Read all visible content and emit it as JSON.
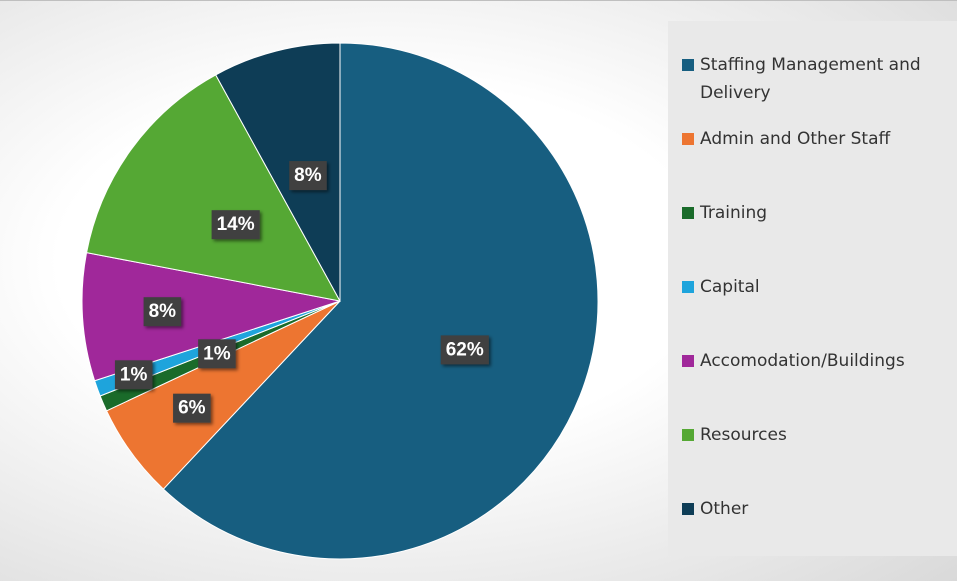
{
  "chart_data": {
    "type": "pie",
    "categories": [
      "Staffing Management and Delivery",
      "Admin and Other Staff",
      "Training",
      "Capital",
      "Accomodation/Buildings",
      "Resources",
      "Other"
    ],
    "values": [
      62,
      6,
      1,
      1,
      8,
      14,
      8
    ],
    "value_labels": [
      "62%",
      "6%",
      "1%",
      "1%",
      "8%",
      "14%",
      "8%"
    ],
    "colors": [
      "#175e80",
      "#ed7531",
      "#1a6b2a",
      "#1ea4dc",
      "#a0289a",
      "#55a834",
      "#0e3d56"
    ],
    "legend": "right"
  }
}
